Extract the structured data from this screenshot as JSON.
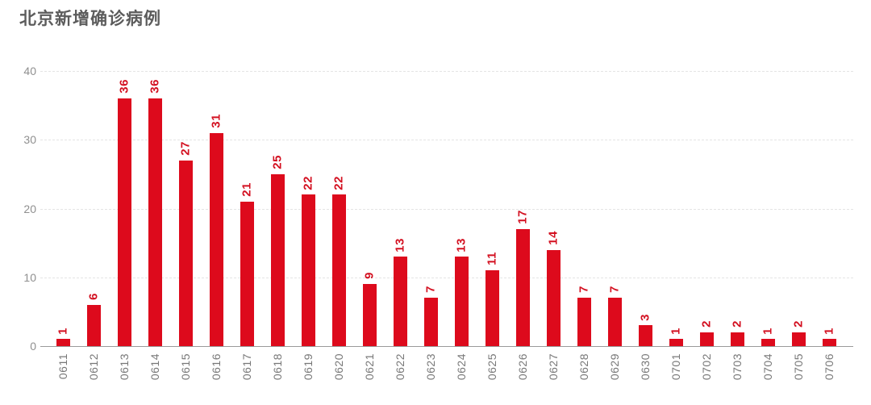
{
  "header": {
    "title": "北京新增确诊病例"
  },
  "colors": {
    "bar": "#dd0a1c",
    "value_label": "#d31020",
    "title_text": "#5c5c5c",
    "axis_text": "#787878",
    "ytick_text": "#8f8f8f",
    "gridline": "#e4e4e4",
    "axis_line": "#9a9a9a",
    "background": "#ffffff"
  },
  "chart_data": {
    "type": "bar",
    "title": "北京新增确诊病例",
    "categories": [
      "0611",
      "0612",
      "0613",
      "0614",
      "0615",
      "0616",
      "0617",
      "0618",
      "0619",
      "0620",
      "0621",
      "0622",
      "0623",
      "0624",
      "0625",
      "0626",
      "0627",
      "0628",
      "0629",
      "0630",
      "0701",
      "0702",
      "0703",
      "0704",
      "0705",
      "0706"
    ],
    "values": [
      1,
      6,
      36,
      36,
      27,
      31,
      21,
      25,
      22,
      22,
      9,
      13,
      7,
      13,
      11,
      17,
      14,
      7,
      7,
      3,
      1,
      2,
      2,
      1,
      2,
      1
    ],
    "xlabel": "",
    "ylabel": "",
    "ylim": [
      0,
      40
    ],
    "yticks": [
      0,
      10,
      20,
      30,
      40
    ],
    "grid": true,
    "legend": "none",
    "value_labels_rotation_deg": -90,
    "x_tick_rotation_deg": -90
  }
}
